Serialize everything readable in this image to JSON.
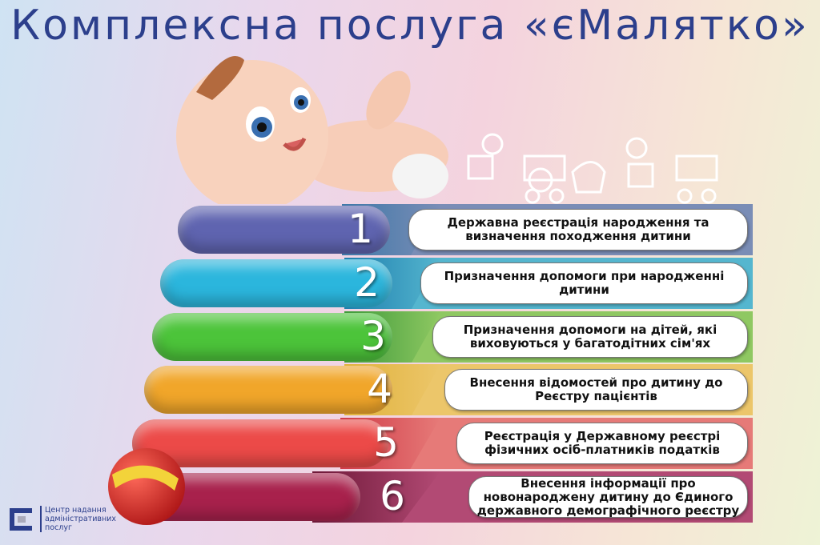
{
  "title": "Комплексна послуга «єМалятко»",
  "services": [
    {
      "number": "1",
      "text": "Державна реєстрація народження та визначення походження дитини",
      "ring": "#5f64b0",
      "band": "#7a8db6",
      "wedge": "#3f78a8"
    },
    {
      "number": "2",
      "text": "Призначення допомоги при народженні дитини",
      "ring": "#2bb6dd",
      "band": "#55b6cf",
      "wedge": "#1f7fae"
    },
    {
      "number": "3",
      "text": "Призначення допомоги на дітей, які виховуються у багатодітних сім'ях",
      "ring": "#4cc43a",
      "band": "#8fc862",
      "wedge": "#3e9a3a"
    },
    {
      "number": "4",
      "text": "Внесення відомостей про дитину до Реєстру пацієнтів",
      "ring": "#f1a62a",
      "band": "#ecc66a",
      "wedge": "#e0b23c"
    },
    {
      "number": "5",
      "text": "Реєстрація у Державному реєстрі фізичних осіб-платників податків",
      "ring": "#ec4a48",
      "band": "#e67a78",
      "wedge": "#d03c48"
    },
    {
      "number": "6",
      "text": "Внесення інформації про новонароджену дитину до Єдиного державного демографічного реєстру",
      "ring": "#a8214c",
      "band": "#b24a74",
      "wedge": "#6e1838"
    }
  ],
  "logo": {
    "line1": "Центр надання",
    "line2": "адміністративних",
    "line3": "послуг",
    "color": "#2c3f8c"
  }
}
